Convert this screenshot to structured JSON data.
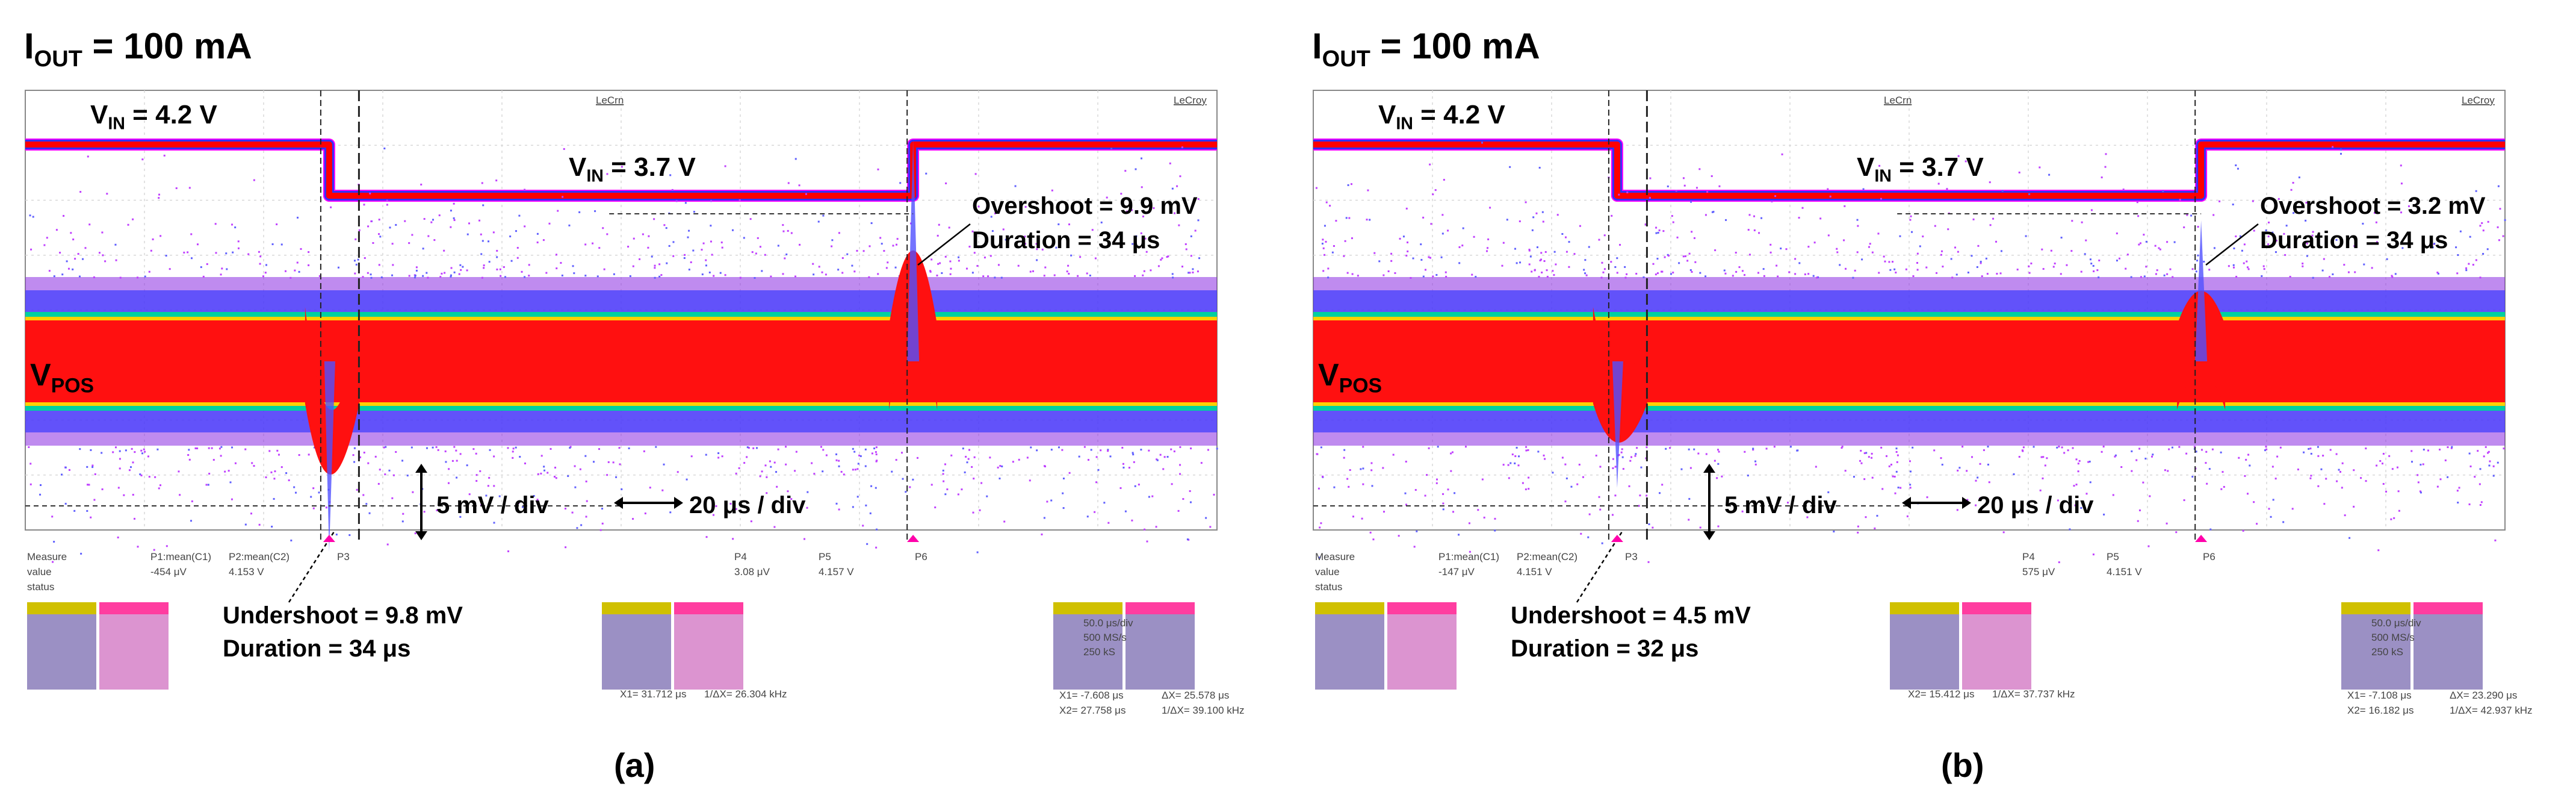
{
  "chart_data": [
    {
      "type": "line",
      "panel_label": "(a)",
      "title": "I_OUT = 100 mA",
      "title_main": "I",
      "title_sub": "OUT",
      "title_rest": " = 100 mA",
      "brand_top": "LeCroy",
      "brand_top_left": "LeCrn",
      "vin_high_label": "VIN = 4.2 V",
      "vin_high_main": "V",
      "vin_high_sub": "IN",
      "vin_high_rest": " = 4.2 V",
      "vin_low_label": "VIN = 3.7 V",
      "vin_low_main": "V",
      "vin_low_sub": "IN",
      "vin_low_rest": " = 3.7 V",
      "vpos_label": "VPOS",
      "vpos_main": "V",
      "vpos_sub": "POS",
      "overshoot_label": "Overshoot = 9.9 mV",
      "overshoot_duration": "Duration = 34 μs",
      "undershoot_label": "Undershoot = 9.8 mV",
      "undershoot_duration": "Duration = 34 μs",
      "vscale_label": "5 mV / div",
      "hscale_label": "20 μs / div",
      "series": [
        {
          "name": "VIN",
          "unit": "V",
          "segments": [
            {
              "x_div": [
                0,
                5.1
              ],
              "value": 4.2
            },
            {
              "x_div": [
                5.1,
                14.9
              ],
              "value": 3.7
            },
            {
              "x_div": [
                14.9,
                20
              ],
              "value": 4.2
            }
          ]
        },
        {
          "name": "VPOS",
          "unit": "mV",
          "undershoot_mV": 9.8,
          "undershoot_duration_us": 34,
          "overshoot_mV": 9.9,
          "overshoot_duration_us": 34,
          "time_per_div_us": 20,
          "volts_per_div_mV": 5
        }
      ],
      "measure_rows": [
        "Measure",
        "value",
        "status"
      ],
      "measure_columns": [
        "P1:mean(C1)",
        "P2:mean(C2)",
        "P3",
        "P4",
        "P5",
        "P6"
      ],
      "measure_values_left": [
        "-454 μV",
        "4.153 V"
      ],
      "measure_values_right": [
        "3.08 μV",
        "4.157 V"
      ],
      "cursor_readout": [
        "X1= 31.712 μs",
        "1/ΔX= 26.304 kHz",
        "X1= -7.608 μs",
        "ΔX= 25.578 μs",
        "X2= 27.758 μs",
        "1/ΔX= 39.100 kHz"
      ],
      "time_readout": [
        "50.0 μs/div",
        "500 MS/s",
        "250 kS"
      ]
    },
    {
      "type": "line",
      "panel_label": "(b)",
      "title": "I_OUT = 100 mA",
      "title_main": "I",
      "title_sub": "OUT",
      "title_rest": " = 100 mA",
      "brand_top": "LeCroy",
      "brand_top_left": "LeCrn",
      "vin_high_label": "VIN = 4.2 V",
      "vin_high_main": "V",
      "vin_high_sub": "IN",
      "vin_high_rest": " = 4.2 V",
      "vin_low_label": "VIN = 3.7 V",
      "vin_low_main": "V",
      "vin_low_sub": "IN",
      "vin_low_rest": " = 3.7 V",
      "vpos_label": "VPOS",
      "vpos_main": "V",
      "vpos_sub": "POS",
      "overshoot_label": "Overshoot = 3.2 mV",
      "overshoot_duration": "Duration = 34 μs",
      "undershoot_label": "Undershoot = 4.5 mV",
      "undershoot_duration": "Duration = 32 μs",
      "vscale_label": "5 mV / div",
      "hscale_label": "20 μs / div",
      "series": [
        {
          "name": "VIN",
          "unit": "V",
          "segments": [
            {
              "x_div": [
                0,
                5.1
              ],
              "value": 4.2
            },
            {
              "x_div": [
                5.1,
                14.9
              ],
              "value": 3.7
            },
            {
              "x_div": [
                14.9,
                20
              ],
              "value": 4.2
            }
          ]
        },
        {
          "name": "VPOS",
          "unit": "mV",
          "undershoot_mV": 4.5,
          "undershoot_duration_us": 32,
          "overshoot_mV": 3.2,
          "overshoot_duration_us": 34,
          "time_per_div_us": 20,
          "volts_per_div_mV": 5
        }
      ],
      "measure_rows": [
        "Measure",
        "value",
        "status"
      ],
      "measure_columns": [
        "P1:mean(C1)",
        "P2:mean(C2)",
        "P3",
        "P4",
        "P5",
        "P6"
      ],
      "measure_values_left": [
        "-147 μV",
        "4.151 V"
      ],
      "measure_values_right": [
        "575 μV",
        "4.151 V"
      ],
      "cursor_readout": [
        "X2= 15.412 μs",
        "1/ΔX= 37.737 kHz",
        "X1= -7.108 μs",
        "ΔX= 23.290 μs",
        "X2= 16.182 μs",
        "1/ΔX= 42.937 kHz"
      ],
      "time_readout": [
        "50.0 μs/div",
        "500 MS/s",
        "250 kS"
      ]
    }
  ]
}
